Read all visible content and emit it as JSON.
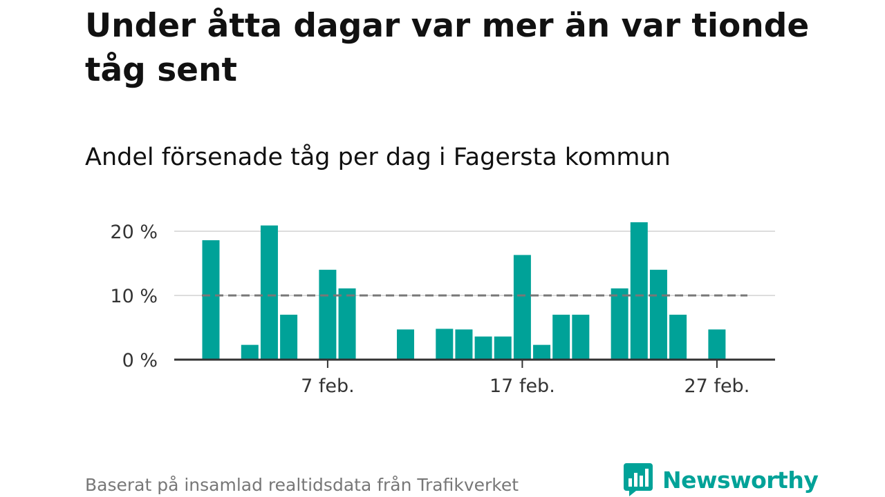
{
  "headline": "Under åtta dagar var mer än var tionde tåg sent",
  "subtitle": "Andel försenade tåg per dag i Fagersta kommun",
  "footer": "Baserat på insamlad realtidsdata från Trafikverket",
  "brand": {
    "name": "Newsworthy",
    "logo_icon": "bar-chart-speech-bubble-icon"
  },
  "colors": {
    "bar": "#00a298",
    "reference_line": "#777777",
    "gridline": "#dddddd",
    "axis": "#333333",
    "text": "#111111",
    "footer": "#777777",
    "brand": "#00a298"
  },
  "chart_data": {
    "type": "bar",
    "x_unit": "day of February",
    "x": [
      1,
      2,
      3,
      4,
      5,
      6,
      7,
      8,
      9,
      10,
      11,
      12,
      13,
      14,
      15,
      16,
      17,
      18,
      19,
      20,
      21,
      22,
      23,
      24,
      25,
      26,
      27,
      28
    ],
    "values": [
      18.6,
      null,
      2.3,
      20.9,
      7.0,
      null,
      14.0,
      11.1,
      null,
      null,
      4.7,
      null,
      4.8,
      4.7,
      3.6,
      3.6,
      16.3,
      2.3,
      7.0,
      7.0,
      null,
      11.1,
      21.4,
      14.0,
      7.0,
      null,
      4.7,
      null
    ],
    "reference_line": {
      "value": 10,
      "style": "dashed"
    },
    "ylim": [
      0,
      22
    ],
    "yticks": [
      {
        "value": 0,
        "label": "0 %"
      },
      {
        "value": 10,
        "label": "10 %"
      },
      {
        "value": 20,
        "label": "20 %"
      }
    ],
    "xticks": [
      {
        "x": 7,
        "label": "7 feb."
      },
      {
        "x": 17,
        "label": "17 feb."
      },
      {
        "x": 27,
        "label": "27 feb."
      }
    ],
    "grid": true,
    "xlabel": "",
    "ylabel": ""
  }
}
